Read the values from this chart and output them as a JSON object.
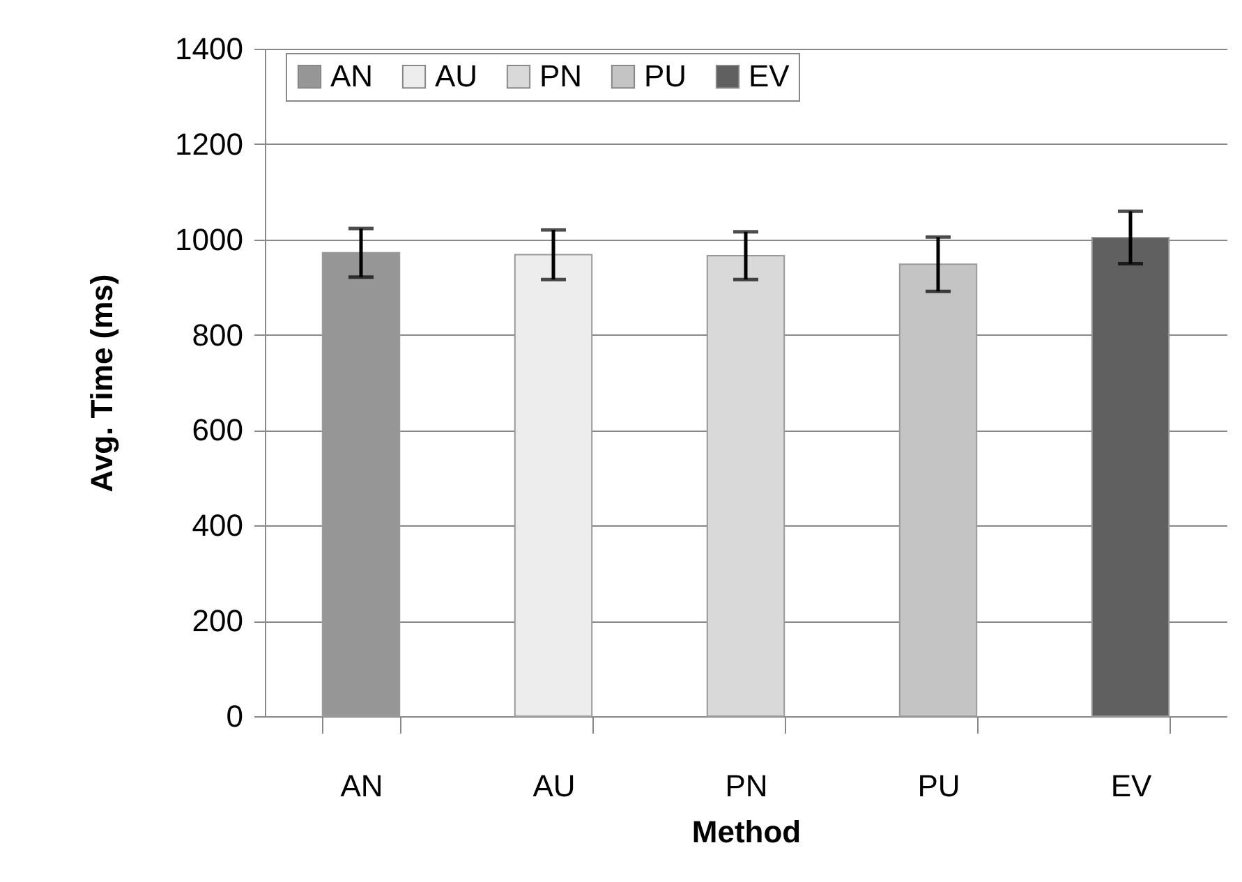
{
  "chart_data": {
    "type": "bar",
    "xlabel": "Method",
    "ylabel": "Avg.  Time (ms)",
    "categories": [
      "AN",
      "AU",
      "PN",
      "PU",
      "EV"
    ],
    "series": [
      {
        "name": "AN",
        "color": "#969696",
        "values": [
          972,
          null,
          null,
          null,
          null
        ],
        "errors": [
          51,
          null,
          null,
          null,
          null
        ]
      },
      {
        "name": "AU",
        "color": "#ededed",
        "values": [
          null,
          968,
          null,
          null,
          null
        ],
        "errors": [
          null,
          52,
          null,
          null,
          null
        ]
      },
      {
        "name": "PN",
        "color": "#d9d9d9",
        "values": [
          null,
          null,
          966,
          null,
          null
        ],
        "errors": [
          null,
          null,
          50,
          null,
          null
        ]
      },
      {
        "name": "PU",
        "color": "#c4c4c4",
        "values": [
          null,
          null,
          null,
          948,
          null
        ],
        "errors": [
          null,
          null,
          null,
          57,
          null
        ]
      },
      {
        "name": "EV",
        "color": "#606060",
        "values": [
          null,
          null,
          null,
          null,
          1004
        ],
        "errors": [
          null,
          null,
          null,
          null,
          55
        ]
      }
    ],
    "ylim": [
      0,
      1400
    ],
    "yticks": [
      0,
      200,
      400,
      600,
      800,
      1000,
      1200,
      1400
    ],
    "grid": "y",
    "legend": "top"
  }
}
